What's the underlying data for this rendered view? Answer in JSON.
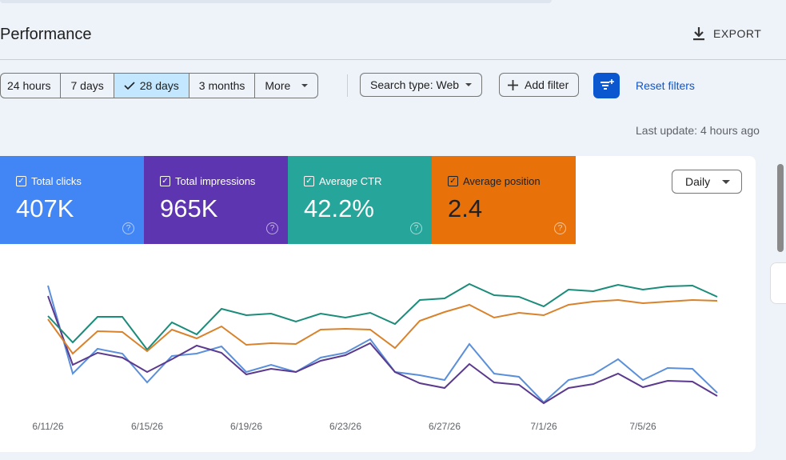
{
  "header": {
    "title": "Performance",
    "export": "EXPORT"
  },
  "toolbar": {
    "ranges": [
      "24 hours",
      "7 days",
      "28 days",
      "3 months",
      "More"
    ],
    "selected": 2,
    "search_type": "Search type: Web",
    "add_filter": "Add filter",
    "reset": "Reset filters"
  },
  "last_update": "Last update: 4 hours ago",
  "granularity": "Daily",
  "chart_data": {
    "type": "line",
    "categories": [
      "6/11/26",
      null,
      null,
      null,
      "6/15/26",
      null,
      null,
      null,
      "6/19/26",
      null,
      null,
      null,
      "6/23/26",
      null,
      null,
      null,
      "6/27/26",
      null,
      null,
      null,
      "7/1/26",
      null,
      null,
      null,
      "7/5/26",
      null,
      null,
      null
    ],
    "ylim": [
      0,
      100
    ],
    "series": [
      {
        "name": "Total clicks",
        "total": "407K",
        "card_color": "#4285f4",
        "color": "#5b8fd9",
        "values": [
          91.5,
          36.5,
          52,
          49,
          31,
          47.5,
          49,
          53.5,
          37.5,
          42,
          37.5,
          46.5,
          49.5,
          58,
          37.5,
          35.5,
          32.5,
          55,
          36.5,
          34.5,
          18.5,
          32.5,
          36,
          45.5,
          32.5,
          40,
          39.5,
          24.5
        ]
      },
      {
        "name": "Total impressions",
        "total": "965K",
        "card_color": "#5e35b1",
        "color": "#5b3a8e",
        "values": [
          85,
          42,
          49.5,
          46.5,
          37.5,
          45.5,
          54,
          49.5,
          36,
          39.5,
          37.5,
          44.5,
          48,
          55.5,
          37.5,
          30.5,
          27.5,
          42.5,
          31,
          29.5,
          18,
          27.5,
          30,
          36.5,
          28,
          32,
          31.5,
          22.5
        ]
      },
      {
        "name": "Average CTR",
        "total": "42.2%",
        "card_color": "#26a69a",
        "color": "#1b8c7a",
        "values": [
          72.5,
          56,
          72,
          72,
          51.5,
          68.5,
          61,
          77,
          73,
          74,
          69,
          74,
          71.5,
          74.5,
          67.5,
          82.5,
          83.5,
          92.5,
          85.5,
          84.5,
          78.5,
          89,
          88,
          92,
          89,
          91,
          91.5,
          84.5
        ]
      },
      {
        "name": "Average position",
        "total": "2.4",
        "card_color": "#e8710a",
        "color": "#d9822b",
        "values": [
          70.5,
          49,
          63,
          62.5,
          50.5,
          64,
          58.5,
          66,
          54.5,
          55.5,
          55,
          64,
          64.5,
          64,
          52.5,
          69.5,
          75,
          79.5,
          71.5,
          74.5,
          73,
          79.5,
          81.5,
          82.5,
          80.5,
          81.5,
          82.5,
          82
        ]
      }
    ]
  }
}
